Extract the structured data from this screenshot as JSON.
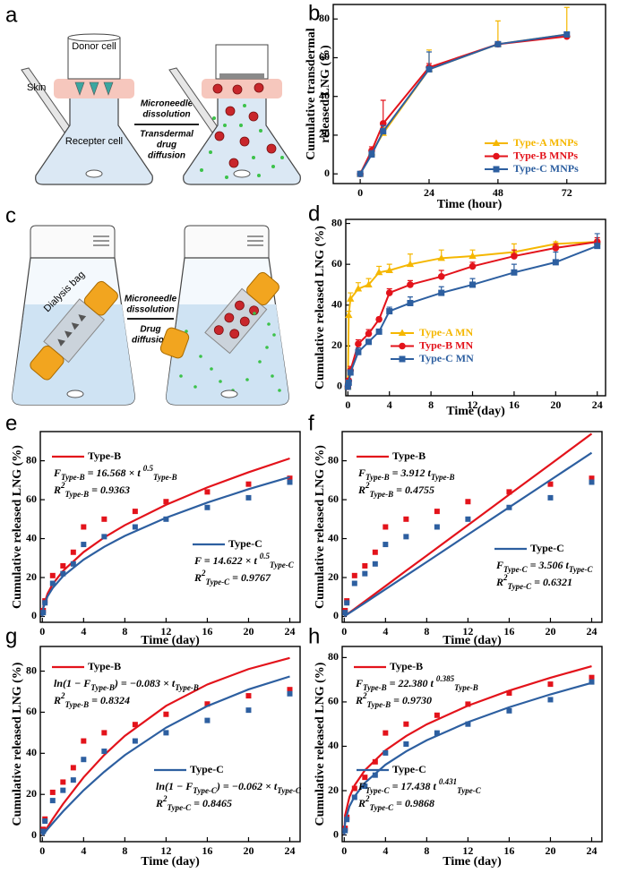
{
  "figure": {
    "a": {
      "label": "a",
      "donor": "Donor cell",
      "skin": "Skin",
      "receiver": "Recepter cell",
      "arrow_top": [
        "Microneedle",
        "dissolution"
      ],
      "arrow_bottom": [
        "Transdermal",
        "drug",
        "diffusion"
      ]
    },
    "c": {
      "label": "c",
      "bag": "Dialysis bag",
      "arrow_top": [
        "Microneedle",
        "dissolution"
      ],
      "arrow_bottom": [
        "Drug",
        "diffusion"
      ]
    }
  },
  "chart_data": [
    {
      "type": "line",
      "label": "b",
      "ylabel": [
        "Cumulative transdermal",
        "released LNG (%)"
      ],
      "xlabel": "Time (hour)",
      "x": [
        0,
        4,
        8,
        24,
        48,
        72
      ],
      "series": [
        {
          "name": "Type-A MNPs",
          "color": "#f5b700",
          "marker": "triangle",
          "values": [
            0,
            11,
            21,
            54,
            67,
            72
          ],
          "errors": [
            0,
            2,
            3,
            10,
            12,
            14
          ]
        },
        {
          "name": "Type-B MNPs",
          "color": "#e3131b",
          "marker": "circle",
          "values": [
            0,
            12,
            26,
            55,
            67,
            71
          ],
          "errors": [
            0,
            2,
            12,
            2,
            1,
            2
          ]
        },
        {
          "name": "Type-C MNPs",
          "color": "#2d5fa0",
          "marker": "square",
          "values": [
            0,
            10,
            22,
            54,
            67,
            72
          ],
          "errors": [
            0,
            2,
            3,
            9,
            1,
            1
          ]
        }
      ],
      "xlim": [
        -9.4,
        85.5
      ],
      "ylim": [
        -5,
        87.5
      ],
      "xticks": [
        0,
        24,
        48,
        72
      ],
      "yticks": [
        0,
        20,
        40,
        60,
        80
      ],
      "legend": "lower right"
    },
    {
      "type": "line",
      "label": "d",
      "ylabel": "Cumulative released LNG (%)",
      "xlabel": "Time (day)",
      "x": [
        0,
        0.083,
        0.25,
        1,
        2,
        3,
        4,
        6,
        9,
        12,
        16,
        20,
        24
      ],
      "series": [
        {
          "name": "Type-A MN",
          "color": "#f5b700",
          "marker": "triangle",
          "values": [
            0,
            35,
            43,
            48,
            50,
            56,
            57,
            60,
            63,
            64,
            66,
            70,
            71
          ],
          "errors": [
            0,
            2,
            3,
            3,
            3,
            3,
            3,
            5,
            4,
            3,
            4,
            1,
            1
          ]
        },
        {
          "name": "Type-B MN",
          "color": "#e3131b",
          "marker": "circle",
          "values": [
            0,
            3,
            8,
            21,
            26,
            33,
            46,
            50,
            54,
            59,
            64,
            68,
            71
          ],
          "errors": [
            0,
            1,
            2,
            2,
            2,
            1,
            2,
            2,
            3,
            2,
            3,
            2,
            2
          ]
        },
        {
          "name": "Type-C MN",
          "color": "#2d5fa0",
          "marker": "square",
          "values": [
            0,
            2,
            7,
            17,
            22,
            27,
            37,
            41,
            46,
            50,
            56,
            61,
            69
          ],
          "errors": [
            0,
            1,
            1,
            2,
            1,
            1,
            2,
            3,
            3,
            3,
            4,
            5,
            6
          ]
        }
      ],
      "xlim": [
        -0.2,
        24.8
      ],
      "ylim": [
        -4.4,
        82
      ],
      "xticks": [
        0,
        4,
        8,
        12,
        16,
        20,
        24
      ],
      "yticks": [
        0,
        20,
        40,
        60,
        80
      ],
      "legend": "lower left"
    },
    {
      "type": "scatter",
      "label": "e",
      "ylabel": "Cumulative released LNG (%)",
      "xlabel": "Time (day)",
      "x": [
        0.083,
        0.25,
        1,
        2,
        3,
        4,
        6,
        9,
        12,
        16,
        20,
        24
      ],
      "fit_x": [
        0,
        0.1,
        0.5,
        1,
        2,
        4,
        6,
        8,
        12,
        16,
        20,
        24
      ],
      "series": [
        {
          "name": "Type-B",
          "color": "#e3131b",
          "values": [
            3,
            8,
            21,
            26,
            33,
            46,
            50,
            54,
            59,
            64,
            68,
            71
          ],
          "fit": [
            0,
            5.2,
            11.7,
            16.6,
            23.4,
            33.1,
            40.6,
            46.9,
            57.4,
            66.3,
            74.1,
            81.2
          ],
          "formula": [
            "F",
            "Type-B",
            " = 16.568 × t ",
            "0.5",
            "Type-B"
          ],
          "r2": [
            "R",
            "2",
            "Type-B",
            " = 0.9363"
          ]
        },
        {
          "name": "Type-C",
          "color": "#2d5fa0",
          "values": [
            2,
            7,
            17,
            22,
            27,
            37,
            41,
            46,
            50,
            56,
            61,
            69
          ],
          "fit": [
            0,
            4.6,
            10.3,
            14.6,
            20.7,
            29.2,
            35.8,
            41.4,
            50.7,
            58.5,
            65.4,
            71.6
          ],
          "formula": [
            "F = 14.622 × t ",
            "0.5",
            "Type-C"
          ],
          "r2": [
            "R",
            "2",
            "Type-C",
            " = 0.9767"
          ]
        }
      ],
      "xlim": [
        -0.2,
        25
      ],
      "ylim": [
        -3,
        95
      ],
      "xticks": [
        0,
        4,
        8,
        12,
        16,
        20,
        24
      ],
      "yticks": [
        0,
        20,
        40,
        60,
        80
      ]
    },
    {
      "type": "scatter",
      "label": "f",
      "ylabel": "Cumulative released LNG (%)",
      "xlabel": "Time (day)",
      "x": [
        0.083,
        0.25,
        1,
        2,
        3,
        4,
        6,
        9,
        12,
        16,
        20,
        24
      ],
      "fit_x": [
        0,
        0.1,
        0.5,
        1,
        2,
        4,
        6,
        8,
        12,
        16,
        20,
        24
      ],
      "series": [
        {
          "name": "Type-B",
          "color": "#e3131b",
          "values": [
            3,
            8,
            21,
            26,
            33,
            46,
            50,
            54,
            59,
            64,
            68,
            71
          ],
          "fit": [
            0,
            0.4,
            2.0,
            3.9,
            7.8,
            15.6,
            23.5,
            31.3,
            46.9,
            62.6,
            78.2,
            93.9
          ],
          "formula": [
            "F",
            "Type-B",
            " = 3.912 t",
            "Type-B"
          ],
          "r2": [
            "R",
            "2",
            "Type-B",
            " = 0.4755"
          ]
        },
        {
          "name": "Type-C",
          "color": "#2d5fa0",
          "values": [
            2,
            7,
            17,
            22,
            27,
            37,
            41,
            46,
            50,
            56,
            61,
            69
          ],
          "fit": [
            0,
            0.4,
            1.8,
            3.5,
            7.0,
            14.0,
            21.0,
            28.0,
            42.1,
            56.1,
            70.1,
            84.1
          ],
          "formula": [
            "F",
            "Type-C",
            " = 3.506 t",
            "Type-C"
          ],
          "r2": [
            "R",
            "2",
            "Type-C",
            " = 0.6321"
          ]
        }
      ],
      "xlim": [
        -0.2,
        25
      ],
      "ylim": [
        -3,
        95
      ],
      "xticks": [
        0,
        4,
        8,
        12,
        16,
        20,
        24
      ],
      "yticks": [
        0,
        20,
        40,
        60,
        80
      ]
    },
    {
      "type": "scatter",
      "label": "g",
      "ylabel": "Cumulative released LNG (%)",
      "xlabel": "Time (day)",
      "x": [
        0.083,
        0.25,
        1,
        2,
        3,
        4,
        6,
        9,
        12,
        16,
        20,
        24
      ],
      "fit_x": [
        0,
        0.1,
        0.5,
        1,
        2,
        4,
        6,
        8,
        12,
        16,
        20,
        24
      ],
      "series": [
        {
          "name": "Type-B",
          "color": "#e3131b",
          "values": [
            3,
            8,
            21,
            26,
            33,
            46,
            50,
            54,
            59,
            64,
            68,
            71
          ],
          "fit": [
            0,
            0.8,
            4.1,
            8.0,
            15.3,
            28.3,
            39.2,
            48.5,
            63.1,
            73.5,
            81.0,
            86.4
          ],
          "formula": [
            "ln(1 − F",
            "Type-B",
            ") = −0.083 × t",
            "Type-B"
          ],
          "r2": [
            "R",
            "2",
            "Type-B",
            " = 0.8324"
          ]
        },
        {
          "name": "Type-C",
          "color": "#2d5fa0",
          "values": [
            2,
            7,
            17,
            22,
            27,
            37,
            41,
            46,
            50,
            56,
            61,
            69
          ],
          "fit": [
            0,
            0.6,
            3.1,
            6.0,
            11.7,
            22.0,
            31.0,
            39.1,
            52.5,
            63.0,
            71.1,
            77.4
          ],
          "formula": [
            "ln(1 − F",
            "Type-C",
            ") = −0.062 × t",
            "Type-C"
          ],
          "r2": [
            "R",
            "2",
            "Type-C",
            " = 0.8465"
          ]
        }
      ],
      "xlim": [
        -0.2,
        25
      ],
      "ylim": [
        -3,
        92
      ],
      "xticks": [
        0,
        4,
        8,
        12,
        16,
        20,
        24
      ],
      "yticks": [
        0,
        20,
        40,
        60,
        80
      ]
    },
    {
      "type": "scatter",
      "label": "h",
      "ylabel": "Cumulative released LNG (%)",
      "xlabel": "Time (day)",
      "x": [
        0.083,
        0.25,
        1,
        2,
        3,
        4,
        6,
        9,
        12,
        16,
        20,
        24
      ],
      "fit_x": [
        0,
        0.1,
        0.5,
        1,
        2,
        4,
        6,
        8,
        12,
        16,
        20,
        24
      ],
      "series": [
        {
          "name": "Type-B",
          "color": "#e3131b",
          "values": [
            3,
            8,
            21,
            26,
            33,
            46,
            50,
            54,
            59,
            64,
            68,
            71
          ],
          "fit": [
            0,
            9.2,
            17.1,
            22.4,
            29.2,
            38.2,
            44.6,
            49.9,
            58.3,
            65.1,
            70.9,
            76.1
          ],
          "formula": [
            "F",
            "Type-B",
            " = 22.380 t ",
            "0.385",
            "Type-B"
          ],
          "r2": [
            "R",
            "2",
            "Type-B",
            " = 0.9730"
          ]
        },
        {
          "name": "Type-C",
          "color": "#2d5fa0",
          "values": [
            2,
            7,
            17,
            22,
            27,
            37,
            41,
            46,
            50,
            56,
            61,
            69
          ],
          "fit": [
            0,
            6.5,
            12.9,
            17.4,
            23.5,
            31.7,
            37.7,
            42.7,
            50.9,
            57.6,
            63.4,
            68.6
          ],
          "formula": [
            "F",
            "Type-C",
            " = 17.438 t ",
            "0.431",
            "Type-C"
          ],
          "r2": [
            "R",
            "2",
            "Type-C",
            " = 0.9868"
          ]
        }
      ],
      "xlim": [
        -0.2,
        25
      ],
      "ylim": [
        -3,
        85
      ],
      "xticks": [
        0,
        4,
        8,
        12,
        16,
        20,
        24
      ],
      "yticks": [
        0,
        20,
        40,
        60,
        80
      ]
    }
  ]
}
